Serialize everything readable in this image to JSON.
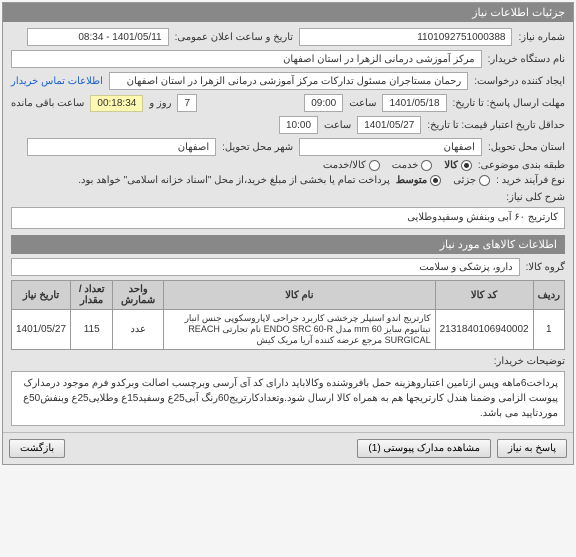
{
  "panel": {
    "title": "جزئیات اطلاعات نیاز"
  },
  "header": {
    "need_no_label": "شماره نیاز:",
    "need_no": "1101092751000388",
    "announce_label": "تاریخ و ساعت اعلان عمومی:",
    "announce_value": "1401/05/11 - 08:34",
    "buyer_label": "نام دستگاه خریدار:",
    "buyer": "مرکز آموزشی درمانی الزهرا در استان اصفهان",
    "requester_label": "ایجاد کننده درخواست:",
    "requester": "رحمان مستاجران مسئول تدارکات مرکز آموزشی درمانی الزهرا در استان اصفهان",
    "contact_link": "اطلاعات تماس خریدار",
    "deadline_label": "مهلت ارسال پاسخ: تا تاریخ:",
    "deadline_date": "1401/05/18",
    "deadline_time_label": "ساعت",
    "deadline_time": "09:00",
    "days_label": "روز و",
    "days": "7",
    "countdown": "00:18:34",
    "remaining_label": "ساعت باقی مانده",
    "validity_label": "حداقل تاریخ اعتبار قیمت: تا تاریخ:",
    "validity_date": "1401/05/27",
    "validity_time_label": "ساعت",
    "validity_time": "10:00",
    "province_label": "استان محل تحویل:",
    "province": "اصفهان",
    "city_label": "شهر محل تحویل:",
    "city": "اصفهان"
  },
  "classification": {
    "label": "طبقه بندی موضوعی:",
    "options": [
      {
        "label": "کالا",
        "checked": true
      },
      {
        "label": "خدمت",
        "checked": false
      },
      {
        "label": "کالا/خدمت",
        "checked": false
      }
    ]
  },
  "purchase_type": {
    "label": "نوع فرآیند خرید :",
    "options": [
      {
        "label": "جزئی",
        "checked": false
      },
      {
        "label": "متوسط",
        "checked": true
      }
    ],
    "note": "پرداخت تمام یا بخشی از مبلغ خرید،از محل \"اسناد خزانه اسلامی\" خواهد بود."
  },
  "need_desc": {
    "label": "شرح کلی نیاز:",
    "text": "کارتریج ۶۰ آبی وبنفش وسفیدوطلایی"
  },
  "items_title": "اطلاعات کالاهای مورد نیاز",
  "group": {
    "label": "گروه کالا:",
    "value": "دارو، پزشکی و سلامت"
  },
  "table": {
    "columns": [
      "ردیف",
      "کد کالا",
      "نام کالا",
      "واحد شمارش",
      "تعداد / مقدار",
      "تاریخ نیاز"
    ],
    "rows": [
      [
        "1",
        "2131840106940002",
        "کارتریج اندو استپلر چرخشی کاربرد جراحی لاپاروسکوپی جنس انبار تیتانیوم سایز 60 mm مدل ENDO SRC 60-R نام تجارتی REACH SURGICAL مرجع عرضه کننده آریا مریک کیش",
        "عدد",
        "115",
        "1401/05/27"
      ]
    ]
  },
  "buyer_notes": {
    "label": "توضیحات خریدار:",
    "text": "پرداخت6ماهه وپس ازتامین اعتباروهزینه حمل بافروشنده وکالاباید دارای کد آی آرسی وبرچسب اصالت وبرکدو فرم موجود درمدارک پیوست الزامی وضمنا هندل کارتریجها هم به همراه کالا ارسال شود.وتعدادکارتریج60رنگ آبی25ع وسفید15ع وطلایی25ع وبنفش50ع موردتایید می باشد."
  },
  "footer": {
    "back": "بازگشت",
    "attachments": "مشاهده مدارک پیوستی (1)",
    "reply": "پاسخ به نیاز"
  }
}
